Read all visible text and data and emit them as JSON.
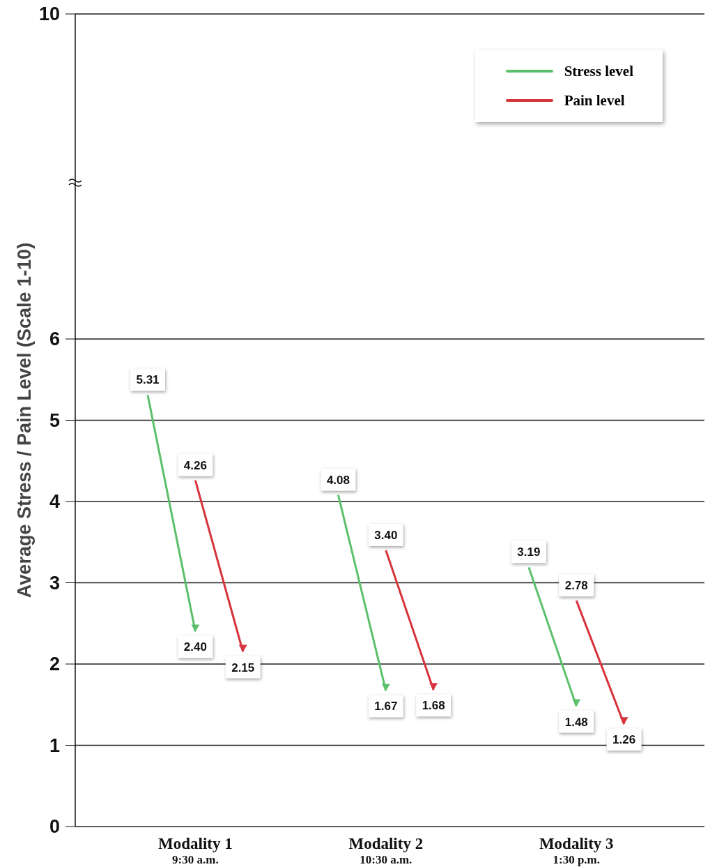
{
  "chart_data": {
    "type": "line",
    "ylabel": "Average Stress / Pain Level (Scale 1-10)",
    "categories": [
      null,
      "Modality 1\n9:30 a.m.",
      null,
      null,
      null,
      "Modality 2\n10:30 a.m.",
      null,
      null,
      null,
      "Modality 3\n1:30 p.m.",
      null,
      null
    ],
    "series": [
      {
        "name": "Stress level",
        "color": "#5cc06a",
        "values": [
          5.31,
          2.4,
          null,
          null,
          4.08,
          1.67,
          null,
          null,
          3.19,
          1.48,
          null,
          null
        ],
        "value_labels": [
          "5.31",
          "2.40",
          null,
          null,
          "4.08",
          "1.67",
          null,
          null,
          "3.19",
          "1.48",
          null,
          null
        ]
      },
      {
        "name": "Pain level",
        "color": "#d6343c",
        "values": [
          null,
          4.26,
          2.15,
          null,
          null,
          3.4,
          1.68,
          null,
          null,
          2.78,
          1.26,
          null
        ],
        "value_labels": [
          null,
          "4.26",
          "2.15",
          null,
          null,
          "3.40",
          "1.68",
          null,
          null,
          "2.78",
          "1.26",
          null
        ]
      }
    ],
    "ylim": [
      0,
      10
    ],
    "yticks": [
      0,
      1,
      2,
      3,
      4,
      5,
      6,
      10
    ],
    "grid": "y",
    "legend": "top right",
    "line_style": "solid",
    "marker": "none"
  }
}
